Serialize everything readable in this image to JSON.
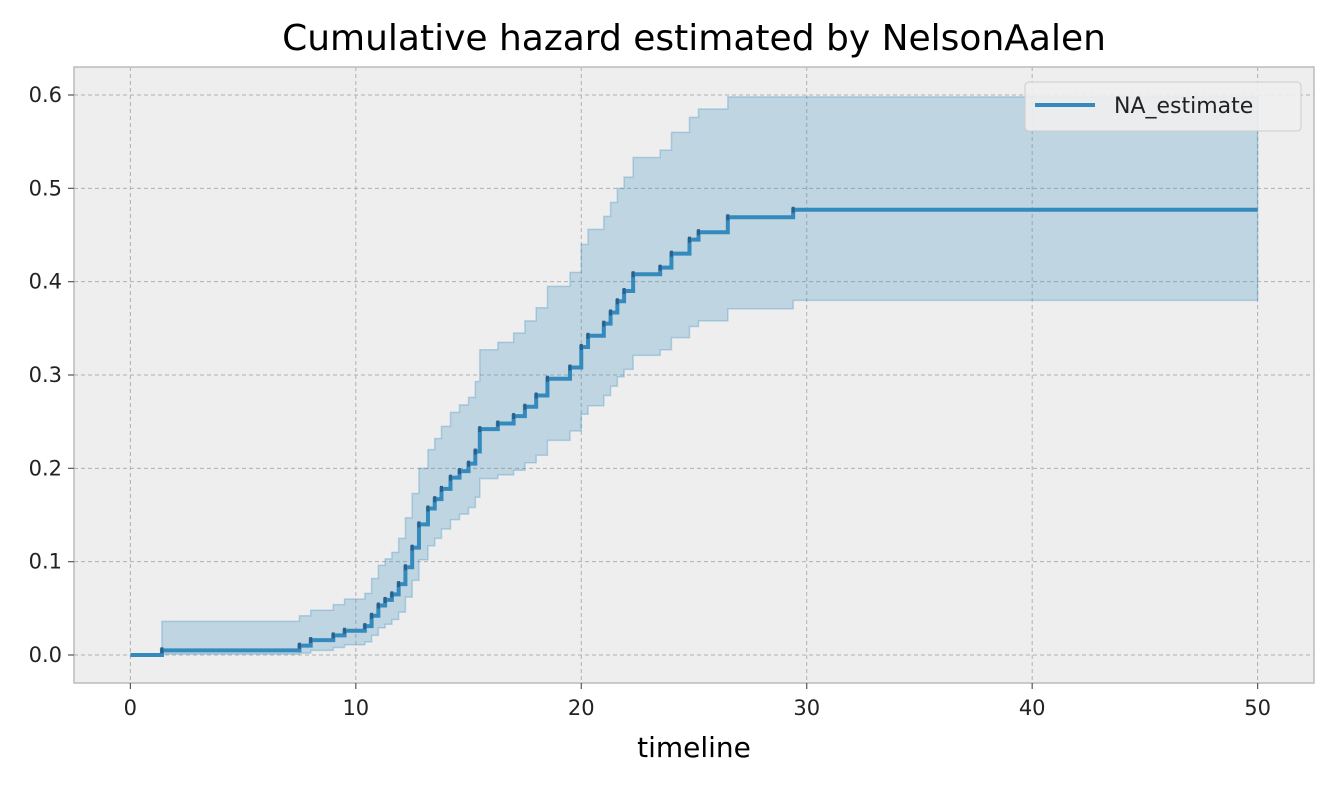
{
  "chart_data": {
    "type": "line",
    "title": "Cumulative hazard estimated by NelsonAalen",
    "xlabel": "timeline",
    "ylabel": "",
    "xlim": [
      -2.5,
      52.5
    ],
    "ylim": [
      -0.03,
      0.63
    ],
    "x_ticks": [
      0,
      10,
      20,
      30,
      40,
      50
    ],
    "y_ticks": [
      0.0,
      0.1,
      0.2,
      0.3,
      0.4,
      0.5,
      0.6
    ],
    "x_tick_labels": [
      "0",
      "10",
      "20",
      "30",
      "40",
      "50"
    ],
    "y_tick_labels": [
      "0.0",
      "0.1",
      "0.2",
      "0.3",
      "0.4",
      "0.5",
      "0.6"
    ],
    "grid": true,
    "legend_position": "top-right",
    "colors": {
      "line": "#348ABD",
      "band": "#348ABD",
      "plot_bg": "#EEEEEE",
      "axes_edge": "#BCBCBC"
    },
    "series": [
      {
        "name": "NA_estimate",
        "step": "post",
        "x": [
          0,
          1.4,
          7.5,
          8,
          9,
          9.5,
          10.4,
          10.7,
          11,
          11.3,
          11.6,
          11.9,
          12.2,
          12.5,
          12.8,
          13.2,
          13.5,
          13.8,
          14.2,
          14.6,
          15.0,
          15.3,
          15.5,
          16.3,
          17.0,
          17.5,
          18.0,
          18.5,
          19.5,
          20.0,
          20.3,
          21.0,
          21.3,
          21.6,
          21.9,
          22.3,
          23.5,
          24.0,
          24.8,
          25.2,
          26.5,
          29.4,
          50
        ],
        "y": [
          0.0,
          0.005,
          0.01,
          0.016,
          0.021,
          0.026,
          0.031,
          0.042,
          0.053,
          0.059,
          0.065,
          0.076,
          0.094,
          0.115,
          0.14,
          0.157,
          0.167,
          0.178,
          0.19,
          0.197,
          0.205,
          0.218,
          0.242,
          0.248,
          0.256,
          0.266,
          0.278,
          0.296,
          0.308,
          0.33,
          0.342,
          0.355,
          0.367,
          0.379,
          0.39,
          0.408,
          0.415,
          0.43,
          0.445,
          0.453,
          0.469,
          0.477,
          0.477
        ],
        "ci_lower": [
          0.0,
          0.001,
          0.002,
          0.005,
          0.008,
          0.011,
          0.014,
          0.021,
          0.029,
          0.033,
          0.038,
          0.046,
          0.062,
          0.08,
          0.102,
          0.117,
          0.125,
          0.135,
          0.145,
          0.151,
          0.158,
          0.169,
          0.189,
          0.193,
          0.198,
          0.206,
          0.214,
          0.23,
          0.24,
          0.258,
          0.267,
          0.278,
          0.288,
          0.298,
          0.306,
          0.321,
          0.327,
          0.34,
          0.352,
          0.358,
          0.371,
          0.38,
          0.38
        ],
        "ci_upper": [
          0.0,
          0.036,
          0.042,
          0.048,
          0.054,
          0.06,
          0.066,
          0.082,
          0.096,
          0.103,
          0.11,
          0.125,
          0.147,
          0.173,
          0.2,
          0.22,
          0.232,
          0.245,
          0.26,
          0.268,
          0.276,
          0.293,
          0.327,
          0.335,
          0.345,
          0.358,
          0.372,
          0.395,
          0.41,
          0.44,
          0.456,
          0.47,
          0.485,
          0.5,
          0.512,
          0.533,
          0.541,
          0.56,
          0.576,
          0.585,
          0.598,
          0.598,
          0.598
        ]
      }
    ]
  }
}
